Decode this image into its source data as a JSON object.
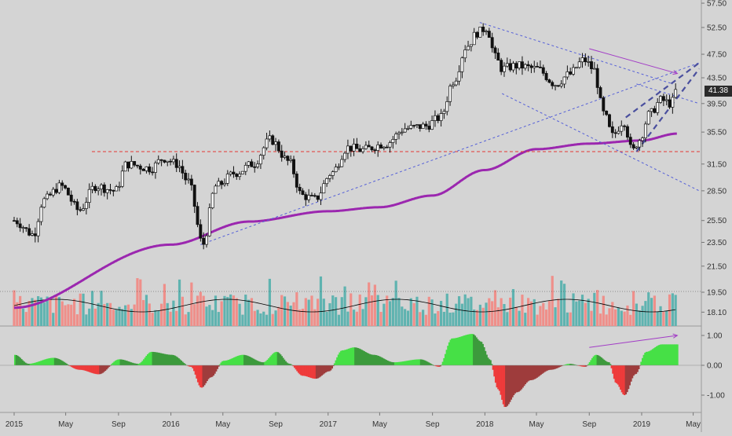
{
  "chart_data": {
    "type": "candlestick",
    "title": "",
    "price_axis": {
      "ticks": [
        18.1,
        19.5,
        21.5,
        23.5,
        25.5,
        28.5,
        31.5,
        35.5,
        39.5,
        43.5,
        47.5,
        52.5,
        57.5
      ],
      "tick_labels": [
        "18.10",
        "19.50",
        "21.50",
        "23.50",
        "25.50",
        "28.50",
        "31.50",
        "35.50",
        "39.50",
        "43.50",
        "47.50",
        "52.50",
        "57.50"
      ],
      "scale": "log",
      "range": [
        17.5,
        58.0
      ],
      "last_price": 41.38,
      "last_price_label": "41.38"
    },
    "time_axis": {
      "labels": [
        "2015",
        "May",
        "Sep",
        "2016",
        "May",
        "Sep",
        "2017",
        "May",
        "Sep",
        "2018",
        "May",
        "Sep",
        "2019",
        "May"
      ],
      "range": [
        "2015-01-01",
        "2019-05-15"
      ]
    },
    "price_anchors": {
      "dates": [
        "2015-01-01",
        "2015-02-15",
        "2015-03-10",
        "2015-04-20",
        "2015-06-01",
        "2015-07-10",
        "2015-08-25",
        "2015-09-20",
        "2015-11-15",
        "2015-12-15",
        "2016-01-15",
        "2016-02-10",
        "2016-03-15",
        "2016-04-15",
        "2016-06-01",
        "2016-07-10",
        "2016-08-20",
        "2016-10-01",
        "2016-11-01",
        "2016-12-01",
        "2017-01-10",
        "2017-02-15",
        "2017-03-20",
        "2017-05-15",
        "2017-07-01",
        "2017-08-15",
        "2017-09-20",
        "2017-10-20",
        "2017-11-20",
        "2017-12-15",
        "2018-01-05",
        "2018-01-25",
        "2018-02-10",
        "2018-03-15",
        "2018-05-01",
        "2018-06-15",
        "2018-07-15",
        "2018-08-20",
        "2018-09-10",
        "2018-10-05",
        "2018-10-25",
        "2018-11-20",
        "2018-12-10",
        "2018-12-26",
        "2019-01-20",
        "2019-02-15",
        "2019-03-10",
        "2019-03-25"
      ],
      "close": [
        25.5,
        24.2,
        27.5,
        29.0,
        26.5,
        29.0,
        28.5,
        31.5,
        31.0,
        32.2,
        31.5,
        29.5,
        23.3,
        29.0,
        30.5,
        31.5,
        34.5,
        31.8,
        28.0,
        27.6,
        30.5,
        33.5,
        33.2,
        34.0,
        36.0,
        36.3,
        37.5,
        43.0,
        49.0,
        51.5,
        52.5,
        47.0,
        45.0,
        45.5,
        45.0,
        42.5,
        44.0,
        46.5,
        45.0,
        38.0,
        35.0,
        37.0,
        33.0,
        34.5,
        38.0,
        40.0,
        39.5,
        41.38
      ]
    },
    "series": [
      {
        "name": "",
        "type": "line",
        "color": "#9b27af",
        "values": [
          18.4,
          23.3,
          25.4,
          26.4,
          26.8,
          28.0,
          30.8,
          33.3,
          34.0,
          34.4,
          35.3
        ],
        "dates": [
          "2015-01-01",
          "2016-01-01",
          "2016-07-01",
          "2017-01-01",
          "2017-05-01",
          "2017-09-01",
          "2018-01-01",
          "2018-05-01",
          "2018-09-01",
          "2019-01-01",
          "2019-03-25"
        ]
      }
    ],
    "horizontal_lines": [
      {
        "value": 33.0,
        "style": "dashed",
        "color": "#e53935"
      }
    ],
    "volume_panel": {
      "axis_ticks": [],
      "up_color": "#5fb3b0",
      "down_color": "#ef8f8a",
      "average_line_color": "#000000"
    },
    "oscillator_panel": {
      "ticks": [
        1.0,
        0.0,
        -1.0
      ],
      "tick_labels": [
        "1.00",
        "0.00",
        "-1.00"
      ],
      "positive_color": "#46e046",
      "negative_color": "#ee3b3b",
      "anchors": {
        "dates": [
          "2015-01-01",
          "2015-02-01",
          "2015-04-01",
          "2015-06-01",
          "2015-07-15",
          "2015-09-01",
          "2015-10-15",
          "2015-11-15",
          "2016-01-01",
          "2016-02-15",
          "2016-03-10",
          "2016-04-01",
          "2016-05-01",
          "2016-06-15",
          "2016-08-01",
          "2016-09-01",
          "2016-10-01",
          "2016-11-01",
          "2016-12-01",
          "2017-01-01",
          "2017-02-01",
          "2017-03-01",
          "2017-04-15",
          "2017-06-01",
          "2017-08-01",
          "2017-09-15",
          "2017-10-15",
          "2017-12-01",
          "2017-12-20",
          "2018-01-10",
          "2018-01-30",
          "2018-02-15",
          "2018-03-15",
          "2018-04-15",
          "2018-06-01",
          "2018-07-15",
          "2018-08-20",
          "2018-09-15",
          "2018-10-15",
          "2018-11-01",
          "2018-11-20",
          "2018-12-15",
          "2019-01-10",
          "2019-02-15",
          "2019-03-25"
        ],
        "values": [
          0.35,
          0.05,
          0.25,
          -0.15,
          -0.3,
          0.2,
          0.05,
          0.45,
          0.35,
          -0.05,
          -0.75,
          -0.4,
          0.15,
          0.35,
          0.1,
          0.45,
          0.05,
          -0.35,
          -0.45,
          -0.2,
          0.5,
          0.6,
          0.35,
          0.1,
          0.2,
          -0.05,
          0.9,
          1.05,
          0.8,
          0.2,
          -0.8,
          -1.4,
          -0.9,
          -0.5,
          -0.15,
          0.05,
          -0.05,
          0.35,
          0.1,
          -0.6,
          -1.0,
          -0.3,
          0.45,
          0.7,
          0.7
        ]
      }
    }
  }
}
